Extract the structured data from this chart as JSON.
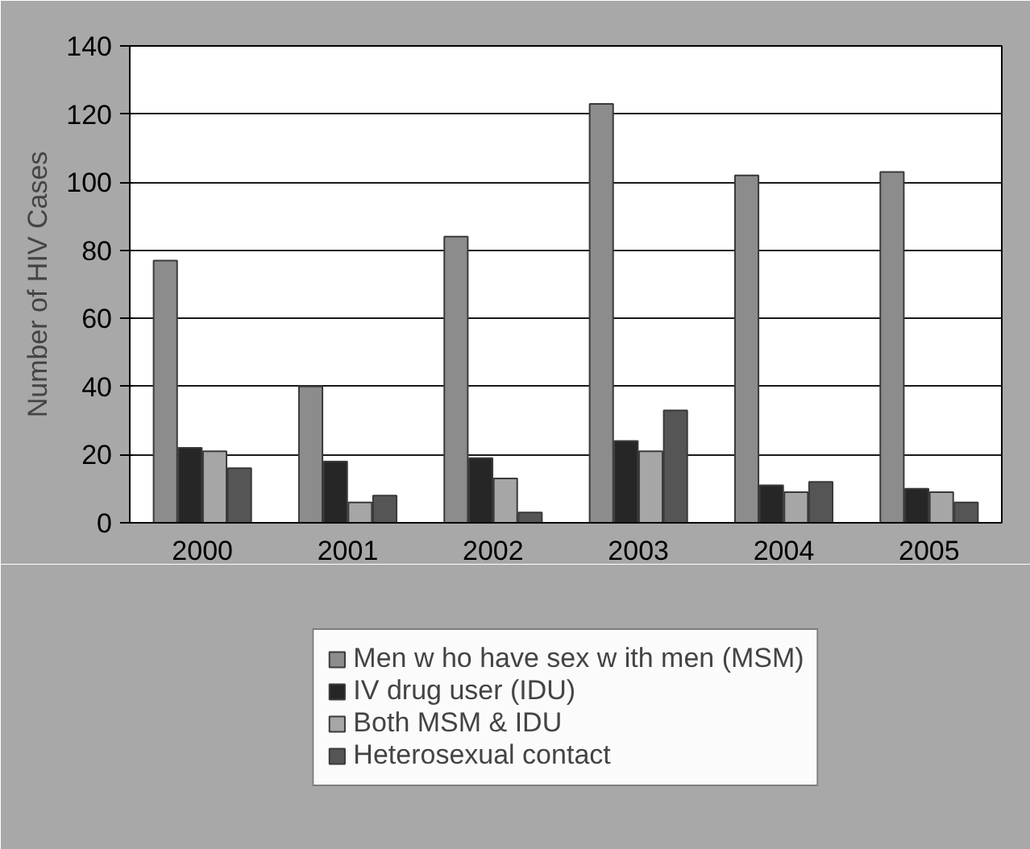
{
  "chart_data": {
    "type": "bar",
    "ylabel": "Number of HIV Cases",
    "categories": [
      "2000",
      "2001",
      "2002",
      "2003",
      "2004",
      "2005"
    ],
    "series": [
      {
        "name": "Men w ho have sex w ith men (MSM)",
        "color": "#8c8c8c",
        "values": [
          77,
          40,
          84,
          123,
          102,
          103
        ]
      },
      {
        "name": "IV drug user (IDU)",
        "color": "#262626",
        "values": [
          22,
          18,
          19,
          24,
          11,
          10
        ]
      },
      {
        "name": "Both MSM & IDU",
        "color": "#a6a6a6",
        "values": [
          21,
          6,
          13,
          21,
          9,
          9
        ]
      },
      {
        "name": "Heterosexual contact",
        "color": "#555555",
        "values": [
          16,
          8,
          3,
          33,
          12,
          6
        ]
      }
    ],
    "ylim": [
      0,
      140
    ],
    "yticks": [
      0,
      20,
      40,
      60,
      80,
      100,
      120,
      140
    ],
    "grid": "y",
    "legend": "bottom"
  }
}
